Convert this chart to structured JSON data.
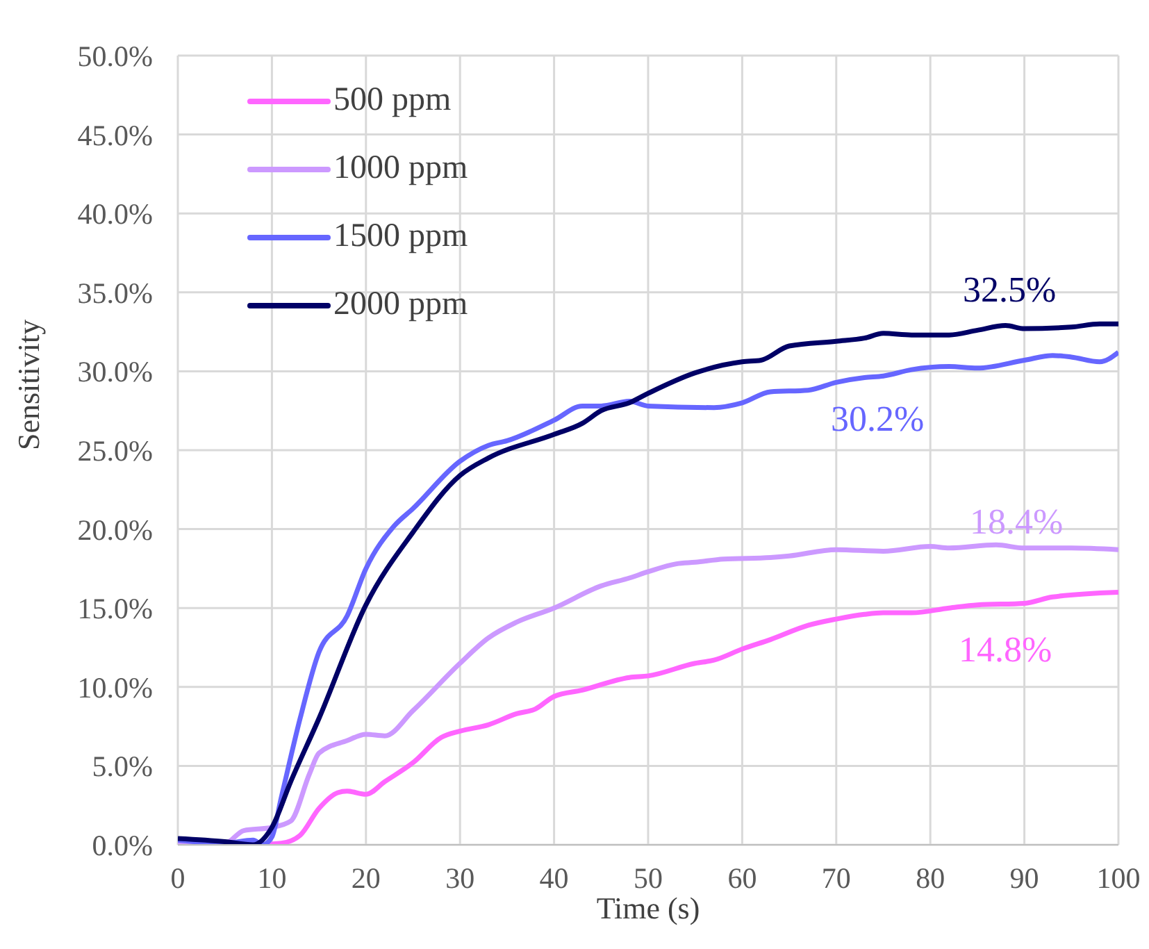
{
  "chart_data": {
    "type": "line",
    "xlabel": "Time (s)",
    "ylabel": "Sensitivity",
    "xlim": [
      0,
      100
    ],
    "xticks": [
      0,
      10,
      20,
      30,
      40,
      50,
      60,
      70,
      80,
      90,
      100
    ],
    "ylim": [
      0,
      50
    ],
    "yticks": [
      {
        "value": 0,
        "label": "0.0%"
      },
      {
        "value": 5,
        "label": "5.0%"
      },
      {
        "value": 10,
        "label": "10.0%"
      },
      {
        "value": 15,
        "label": "15.0%"
      },
      {
        "value": 20,
        "label": "20.0%"
      },
      {
        "value": 25,
        "label": "25.0%"
      },
      {
        "value": 30,
        "label": "30.0%"
      },
      {
        "value": 35,
        "label": "35.0%"
      },
      {
        "value": 40,
        "label": "40.0%"
      },
      {
        "value": 45,
        "label": "45.0%"
      },
      {
        "value": 50,
        "label": "50.0%"
      }
    ],
    "grid": true,
    "legend": "top left",
    "series": [
      {
        "name": "500 ppm",
        "color": "#ff66ff",
        "x": [
          0,
          5,
          8,
          11,
          13,
          15,
          17,
          18,
          20,
          22,
          25,
          28,
          30,
          33,
          36,
          38,
          40,
          43,
          48,
          50,
          55,
          57,
          60,
          63,
          67,
          70,
          73,
          75,
          78,
          82,
          85,
          90,
          93,
          100
        ],
        "values": [
          0.3,
          0.1,
          0,
          0.1,
          0.6,
          2.3,
          3.3,
          3.4,
          3.2,
          4.0,
          5.2,
          6.8,
          7.2,
          7.6,
          8.3,
          8.6,
          9.4,
          9.8,
          10.6,
          10.7,
          11.5,
          11.7,
          12.4,
          13.0,
          13.9,
          14.3,
          14.6,
          14.7,
          14.7,
          15.0,
          15.2,
          15.3,
          15.7,
          16.0
        ]
      },
      {
        "name": "1000 ppm",
        "color": "#cc99ff",
        "x": [
          0,
          5,
          7,
          10,
          12,
          14,
          15,
          18,
          20,
          22,
          25,
          30,
          33,
          36,
          40,
          45,
          48,
          50,
          53,
          55,
          58,
          63,
          65,
          70,
          75,
          80,
          82,
          87,
          90,
          95,
          100
        ],
        "values": [
          0.1,
          0.1,
          0.9,
          1.1,
          1.5,
          4.5,
          5.8,
          6.6,
          7.0,
          6.9,
          8.5,
          11.5,
          13.1,
          14.1,
          15.0,
          16.4,
          16.9,
          17.3,
          17.8,
          17.9,
          18.1,
          18.2,
          18.3,
          18.7,
          18.6,
          18.9,
          18.8,
          19.0,
          18.8,
          18.8,
          18.7
        ]
      },
      {
        "name": "1500 ppm",
        "color": "#6666ff",
        "x": [
          0,
          5,
          8,
          9,
          10,
          11,
          13,
          15,
          18,
          20,
          23,
          25,
          30,
          33,
          35,
          40,
          43,
          45,
          48,
          50,
          57,
          60,
          63,
          67,
          70,
          73,
          75,
          78,
          82,
          85,
          90,
          93,
          95,
          98,
          100
        ],
        "values": [
          0.3,
          0.1,
          0.3,
          0,
          0.5,
          3,
          8,
          12.2,
          14.5,
          17.5,
          20.2,
          21.3,
          24.3,
          25.3,
          25.6,
          26.9,
          27.8,
          27.8,
          28.1,
          27.8,
          27.7,
          28.0,
          28.7,
          28.8,
          29.3,
          29.6,
          29.7,
          30.1,
          30.3,
          30.2,
          30.7,
          31.0,
          30.9,
          30.6,
          31.2
        ]
      },
      {
        "name": "2000 ppm",
        "color": "#000066",
        "x": [
          0,
          5,
          8,
          10,
          12,
          15,
          20,
          25,
          30,
          33,
          40,
          43,
          45,
          48,
          50,
          55,
          60,
          62,
          65,
          70,
          73,
          75,
          78,
          82,
          85,
          88,
          90,
          95,
          98,
          100
        ],
        "values": [
          0.4,
          0.2,
          0,
          1.1,
          4,
          8,
          15.2,
          19.8,
          23.4,
          24.5,
          26.0,
          26.7,
          27.5,
          28.0,
          28.6,
          29.9,
          30.6,
          30.7,
          31.6,
          31.9,
          32.1,
          32.4,
          32.3,
          32.3,
          32.6,
          32.9,
          32.7,
          32.8,
          33.0,
          33.0
        ]
      }
    ],
    "annotations": [
      "14.8%",
      "18.4%",
      "30.2%",
      "32.5%"
    ]
  }
}
